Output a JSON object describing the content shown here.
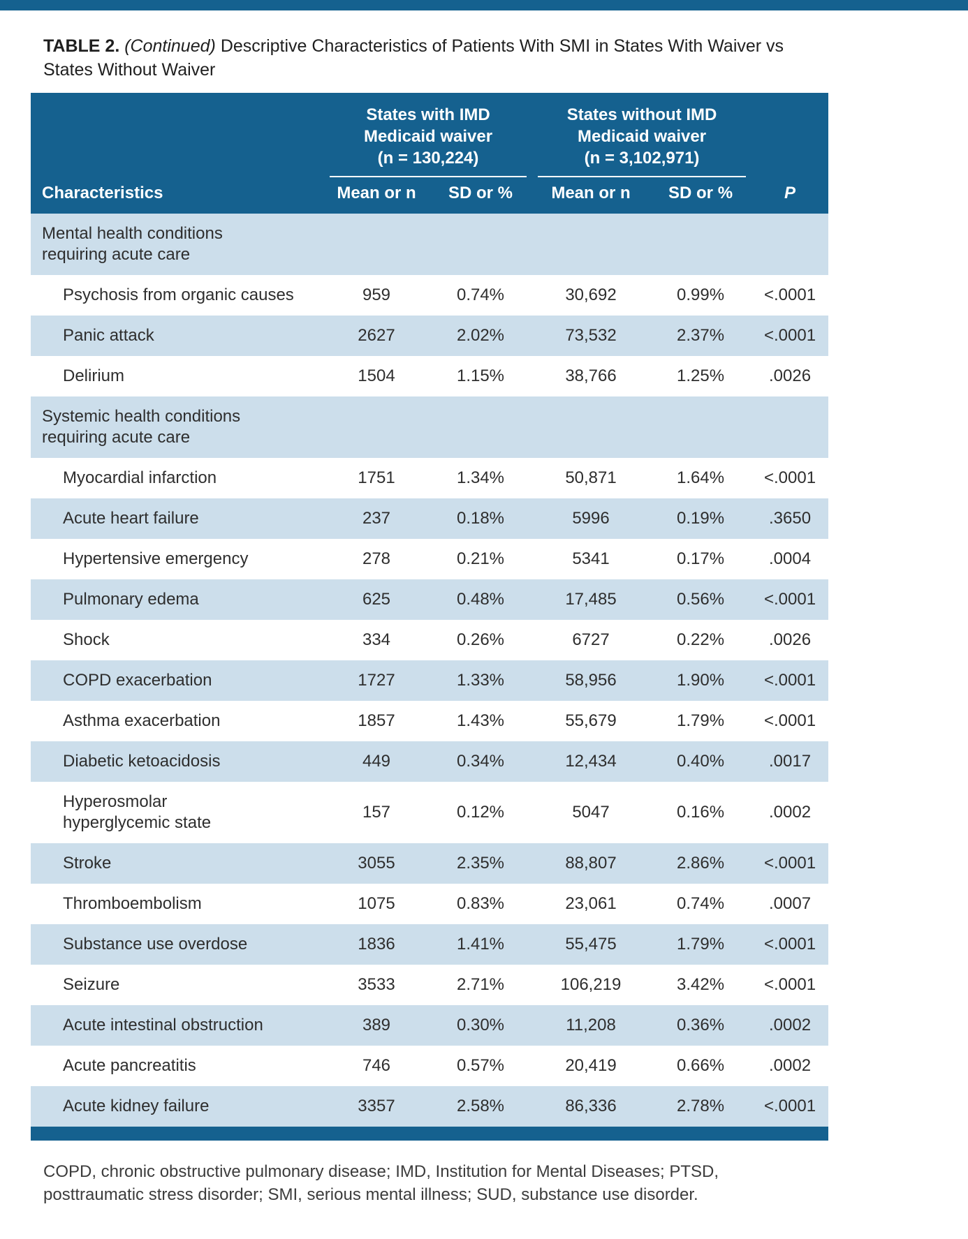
{
  "colors": {
    "accent": "#15618f",
    "row_alt": "#ccdeeb"
  },
  "title": {
    "label": "TABLE 2.",
    "continued": "(Continued)",
    "text": "Descriptive Characteristics of Patients With SMI in States With Waiver vs States Without Waiver"
  },
  "table": {
    "group_headers": [
      "States with IMD\nMedicaid waiver\n(n = 130,224)",
      "States without IMD\nMedicaid waiver\n(n = 3,102,971)"
    ],
    "columns": [
      "Characteristics",
      "Mean or n",
      "SD or %",
      "Mean or n",
      "SD or %",
      "P"
    ],
    "sections": [
      {
        "header": "Mental health conditions\nrequiring acute care",
        "rows": [
          {
            "label": "Psychosis from organic causes",
            "values": [
              "959",
              "0.74%",
              "30,692",
              "0.99%",
              "<.0001"
            ]
          },
          {
            "label": "Panic attack",
            "values": [
              "2627",
              "2.02%",
              "73,532",
              "2.37%",
              "<.0001"
            ]
          },
          {
            "label": "Delirium",
            "values": [
              "1504",
              "1.15%",
              "38,766",
              "1.25%",
              ".0026"
            ]
          }
        ]
      },
      {
        "header": "Systemic health conditions\nrequiring acute care",
        "rows": [
          {
            "label": "Myocardial infarction",
            "values": [
              "1751",
              "1.34%",
              "50,871",
              "1.64%",
              "<.0001"
            ]
          },
          {
            "label": "Acute heart failure",
            "values": [
              "237",
              "0.18%",
              "5996",
              "0.19%",
              ".3650"
            ]
          },
          {
            "label": "Hypertensive emergency",
            "values": [
              "278",
              "0.21%",
              "5341",
              "0.17%",
              ".0004"
            ]
          },
          {
            "label": "Pulmonary edema",
            "values": [
              "625",
              "0.48%",
              "17,485",
              "0.56%",
              "<.0001"
            ]
          },
          {
            "label": "Shock",
            "values": [
              "334",
              "0.26%",
              "6727",
              "0.22%",
              ".0026"
            ]
          },
          {
            "label": "COPD exacerbation",
            "values": [
              "1727",
              "1.33%",
              "58,956",
              "1.90%",
              "<.0001"
            ]
          },
          {
            "label": "Asthma exacerbation",
            "values": [
              "1857",
              "1.43%",
              "55,679",
              "1.79%",
              "<.0001"
            ]
          },
          {
            "label": "Diabetic ketoacidosis",
            "values": [
              "449",
              "0.34%",
              "12,434",
              "0.40%",
              ".0017"
            ]
          },
          {
            "label": "Hyperosmolar\nhyperglycemic state",
            "values": [
              "157",
              "0.12%",
              "5047",
              "0.16%",
              ".0002"
            ]
          },
          {
            "label": "Stroke",
            "values": [
              "3055",
              "2.35%",
              "88,807",
              "2.86%",
              "<.0001"
            ]
          },
          {
            "label": "Thromboembolism",
            "values": [
              "1075",
              "0.83%",
              "23,061",
              "0.74%",
              ".0007"
            ]
          },
          {
            "label": "Substance use overdose",
            "values": [
              "1836",
              "1.41%",
              "55,475",
              "1.79%",
              "<.0001"
            ]
          },
          {
            "label": "Seizure",
            "values": [
              "3533",
              "2.71%",
              "106,219",
              "3.42%",
              "<.0001"
            ]
          },
          {
            "label": "Acute intestinal obstruction",
            "values": [
              "389",
              "0.30%",
              "11,208",
              "0.36%",
              ".0002"
            ]
          },
          {
            "label": "Acute pancreatitis",
            "values": [
              "746",
              "0.57%",
              "20,419",
              "0.66%",
              ".0002"
            ]
          },
          {
            "label": "Acute kidney failure",
            "values": [
              "3357",
              "2.58%",
              "86,336",
              "2.78%",
              "<.0001"
            ]
          }
        ]
      }
    ]
  },
  "footnote": "COPD, chronic obstructive pulmonary disease; IMD, Institution for Mental Diseases; PTSD, posttraumatic stress disorder; SMI, serious mental illness; SUD, substance use disorder."
}
